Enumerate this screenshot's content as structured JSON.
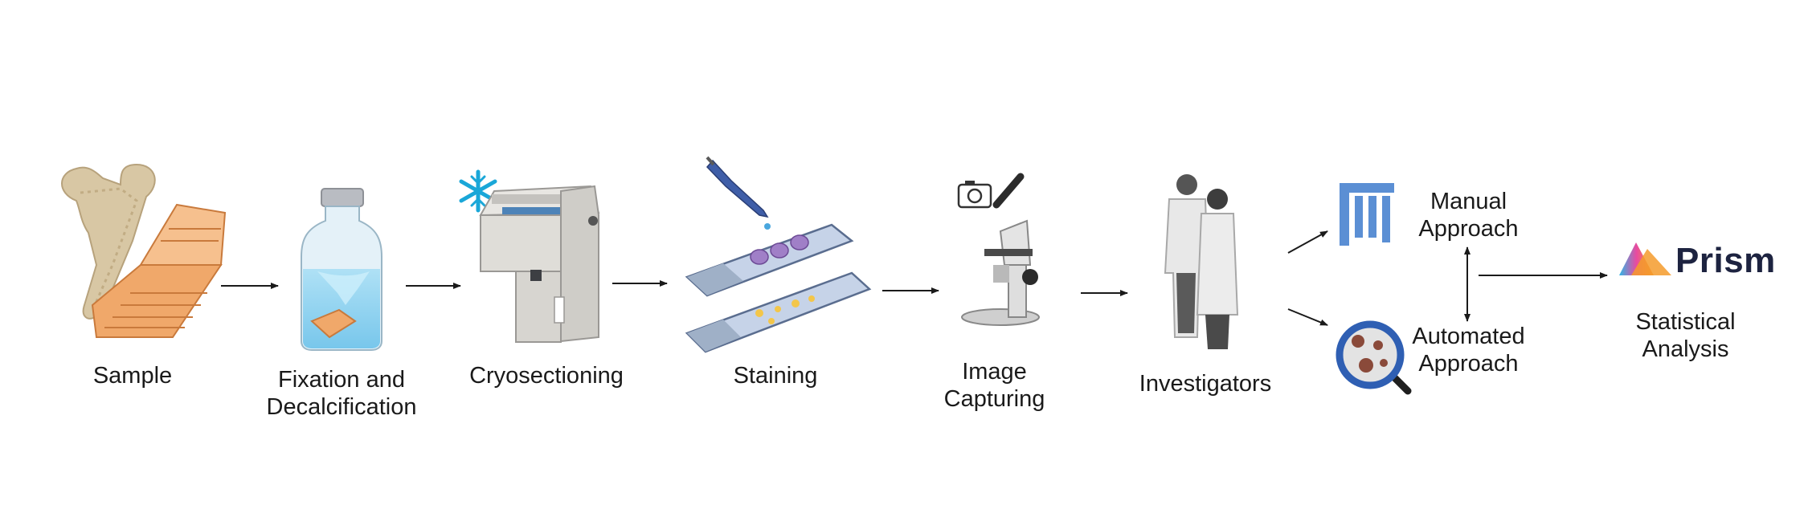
{
  "steps": [
    {
      "id": "sample",
      "lines": [
        "Sample"
      ]
    },
    {
      "id": "fixation",
      "lines": [
        "Fixation and",
        "Decalcification"
      ]
    },
    {
      "id": "cryosectioning",
      "lines": [
        "Cryosectioning"
      ]
    },
    {
      "id": "staining",
      "lines": [
        "Staining"
      ]
    },
    {
      "id": "image-capturing",
      "lines": [
        "Image",
        "Capturing"
      ]
    },
    {
      "id": "investigators",
      "lines": [
        "Investigators"
      ]
    }
  ],
  "approaches": {
    "manual": [
      "Manual",
      "Approach"
    ],
    "automated": [
      "Automated",
      "Approach"
    ]
  },
  "analysis": {
    "brand": "Prism",
    "lines": [
      "Statistical",
      "Analysis"
    ]
  },
  "icons": [
    "bone-icon",
    "cassette-icon",
    "fixation-bottle-icon",
    "snowflake-icon",
    "cryostat-icon",
    "pipette-icon",
    "slide-icon",
    "camera-icon",
    "microscope-icon",
    "investigators-icon",
    "fiji-logo-icon",
    "magnifier-icon",
    "prism-logo-icon"
  ],
  "colors": {
    "arrow": "#1a1a1a",
    "cassette": "#f0a86a",
    "fiji": "#5b8fd4",
    "snowflake": "#1aa7d8",
    "stain": "#a07fc7"
  }
}
